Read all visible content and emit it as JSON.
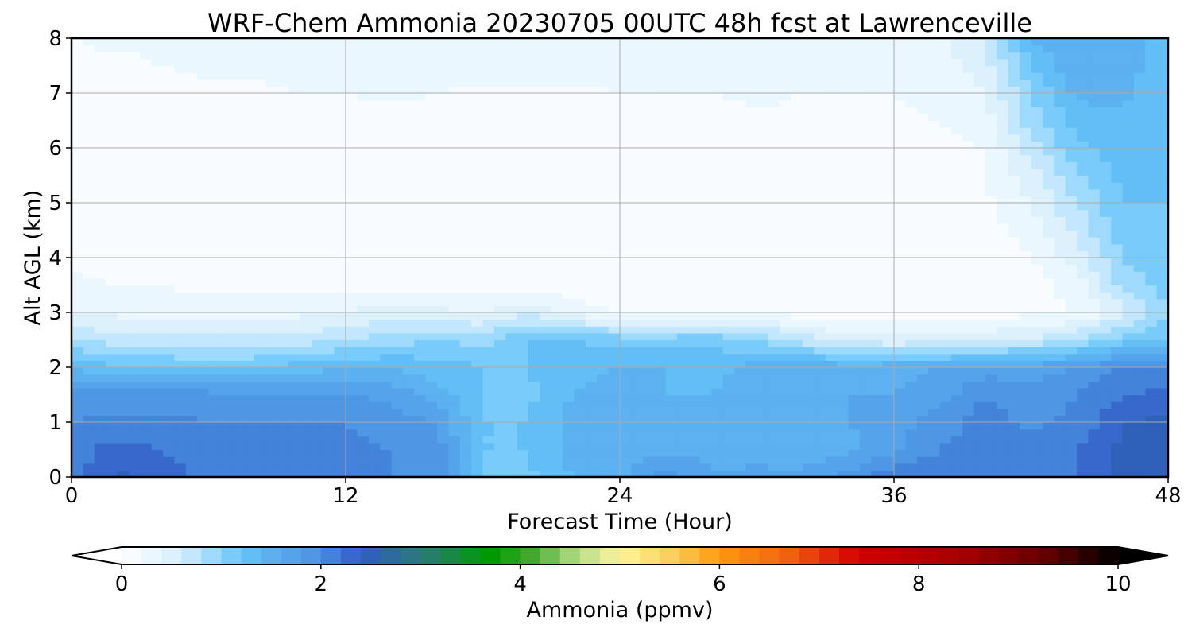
{
  "chart_data": {
    "type": "heatmap",
    "title": "WRF-Chem Ammonia  20230705 00UTC 48h fcst at Lawrenceville",
    "xlabel": "Forecast Time (Hour)",
    "ylabel": "Alt AGL (km)",
    "xlim": [
      0,
      48
    ],
    "ylim": [
      0,
      8
    ],
    "x_ticks": [
      0,
      12,
      24,
      36,
      48
    ],
    "x_tick_labels": [
      "0",
      "12",
      "24",
      "36",
      "48"
    ],
    "y_ticks": [
      0,
      1,
      2,
      3,
      4,
      5,
      6,
      7,
      8
    ],
    "y_tick_labels": [
      "0",
      "1",
      "2",
      "3",
      "4",
      "5",
      "6",
      "7",
      "8"
    ],
    "grid": true,
    "x": [
      0,
      2,
      4,
      6,
      8,
      10,
      12,
      14,
      16,
      18,
      20,
      22,
      24,
      26,
      28,
      30,
      32,
      34,
      36,
      38,
      40,
      42,
      44,
      46,
      48
    ],
    "y": [
      0,
      0.5,
      1,
      1.5,
      2,
      2.5,
      3,
      3.5,
      4,
      4.5,
      5,
      5.5,
      6,
      6.5,
      7,
      7.5,
      8
    ],
    "z": [
      [
        2.1,
        2.45,
        2.3,
        2.15,
        2.1,
        2.1,
        2.1,
        2.0,
        1.9,
        1.2,
        1.15,
        1.4,
        1.55,
        1.9,
        1.6,
        1.7,
        1.7,
        1.9,
        2.15,
        2.2,
        2.2,
        2.2,
        2.2,
        2.45,
        2.5
      ],
      [
        2.1,
        2.3,
        2.2,
        2.1,
        2.15,
        2.1,
        2.05,
        2.0,
        1.9,
        1.2,
        1.2,
        1.5,
        1.55,
        1.55,
        1.55,
        1.45,
        1.4,
        1.55,
        1.75,
        2.0,
        2.1,
        2.1,
        2.2,
        2.45,
        2.6
      ],
      [
        2.0,
        2.05,
        2.05,
        2.0,
        2.0,
        2.0,
        2.0,
        1.9,
        1.8,
        1.2,
        1.2,
        1.5,
        1.6,
        1.5,
        1.4,
        1.5,
        1.5,
        1.6,
        1.7,
        1.9,
        2.1,
        1.95,
        2.05,
        2.4,
        2.45
      ],
      [
        1.9,
        1.9,
        1.9,
        1.9,
        1.85,
        1.85,
        1.8,
        1.75,
        1.5,
        1.2,
        1.15,
        1.4,
        1.5,
        1.4,
        1.4,
        1.55,
        1.6,
        1.6,
        1.6,
        1.7,
        2.0,
        1.9,
        2.0,
        2.2,
        2.25
      ],
      [
        1.4,
        1.2,
        1.2,
        1.1,
        1.2,
        1.3,
        1.4,
        1.4,
        1.3,
        1.2,
        1.2,
        1.35,
        1.4,
        1.4,
        1.3,
        1.5,
        1.6,
        1.5,
        1.55,
        1.6,
        1.7,
        1.7,
        1.8,
        2.0,
        2.0
      ],
      [
        0.8,
        0.7,
        0.7,
        0.65,
        0.65,
        0.7,
        0.8,
        0.9,
        1.0,
        0.9,
        1.2,
        1.2,
        1.1,
        1.1,
        1.15,
        1.0,
        0.7,
        0.5,
        0.45,
        0.5,
        0.55,
        0.6,
        0.8,
        1.1,
        1.2
      ],
      [
        0.4,
        0.35,
        0.3,
        0.3,
        0.3,
        0.35,
        0.4,
        0.5,
        0.45,
        0.4,
        0.55,
        0.3,
        0.2,
        0.2,
        0.2,
        0.15,
        0.1,
        0.1,
        0.1,
        0.1,
        0.1,
        0.15,
        0.2,
        0.5,
        0.95
      ],
      [
        0.25,
        0.2,
        0.2,
        0.15,
        0.15,
        0.15,
        0.15,
        0.15,
        0.15,
        0.1,
        0.1,
        0.1,
        0.05,
        0.05,
        0.05,
        0.05,
        0.05,
        0.05,
        0.05,
        0.05,
        0.05,
        0.1,
        0.3,
        0.9,
        1.1
      ],
      [
        0.15,
        0.1,
        0.1,
        0.1,
        0.05,
        0.05,
        0.05,
        0.05,
        0.05,
        0.05,
        0.05,
        0.05,
        0.05,
        0.05,
        0.05,
        0.05,
        0.05,
        0.05,
        0.05,
        0.05,
        0.05,
        0.2,
        0.5,
        1.0,
        1.1
      ],
      [
        0.1,
        0.05,
        0.05,
        0.05,
        0.05,
        0.05,
        0.05,
        0.05,
        0.05,
        0.05,
        0.05,
        0.05,
        0.05,
        0.05,
        0.05,
        0.05,
        0.05,
        0.05,
        0.05,
        0.05,
        0.1,
        0.3,
        0.65,
        1.1,
        1.15
      ],
      [
        0.05,
        0.05,
        0.05,
        0.05,
        0.05,
        0.05,
        0.05,
        0.05,
        0.05,
        0.05,
        0.05,
        0.05,
        0.05,
        0.05,
        0.05,
        0.05,
        0.05,
        0.05,
        0.05,
        0.1,
        0.15,
        0.4,
        0.8,
        1.2,
        1.2
      ],
      [
        0.05,
        0.05,
        0.05,
        0.05,
        0.05,
        0.05,
        0.05,
        0.05,
        0.05,
        0.05,
        0.05,
        0.05,
        0.05,
        0.05,
        0.05,
        0.05,
        0.05,
        0.1,
        0.15,
        0.1,
        0.2,
        0.5,
        0.95,
        1.25,
        1.2
      ],
      [
        0.05,
        0.05,
        0.05,
        0.05,
        0.05,
        0.05,
        0.05,
        0.05,
        0.05,
        0.05,
        0.05,
        0.05,
        0.05,
        0.05,
        0.1,
        0.1,
        0.1,
        0.15,
        0.2,
        0.15,
        0.2,
        0.7,
        1.15,
        1.3,
        1.2
      ],
      [
        0.1,
        0.05,
        0.05,
        0.05,
        0.05,
        0.05,
        0.05,
        0.1,
        0.1,
        0.05,
        0.05,
        0.05,
        0.05,
        0.1,
        0.1,
        0.15,
        0.15,
        0.15,
        0.15,
        0.2,
        0.3,
        0.9,
        1.3,
        1.35,
        1.2
      ],
      [
        0.1,
        0.1,
        0.1,
        0.15,
        0.15,
        0.2,
        0.2,
        0.25,
        0.2,
        0.15,
        0.15,
        0.15,
        0.2,
        0.2,
        0.2,
        0.25,
        0.2,
        0.2,
        0.2,
        0.25,
        0.4,
        1.0,
        1.45,
        1.45,
        1.2
      ],
      [
        0.15,
        0.15,
        0.2,
        0.25,
        0.25,
        0.3,
        0.3,
        0.3,
        0.3,
        0.3,
        0.3,
        0.3,
        0.3,
        0.3,
        0.3,
        0.35,
        0.35,
        0.35,
        0.3,
        0.3,
        0.5,
        1.2,
        1.55,
        1.5,
        1.3
      ],
      [
        0.2,
        0.25,
        0.25,
        0.3,
        0.3,
        0.3,
        0.35,
        0.35,
        0.35,
        0.35,
        0.35,
        0.35,
        0.35,
        0.35,
        0.35,
        0.35,
        0.35,
        0.35,
        0.35,
        0.35,
        0.6,
        1.4,
        1.6,
        1.5,
        1.3
      ]
    ],
    "colorbar": {
      "label": "Ammonia  (ppmv)",
      "min": 0,
      "max": 10,
      "ticks": [
        0,
        2,
        4,
        6,
        8,
        10
      ],
      "tick_labels": [
        "0",
        "2",
        "4",
        "6",
        "8",
        "10"
      ],
      "extend": "both",
      "levels": 50,
      "color_stops": [
        [
          0.0,
          "#ffffff"
        ],
        [
          0.6,
          "#d6eefc"
        ],
        [
          1.2,
          "#66c5f9"
        ],
        [
          2.0,
          "#4a90e2"
        ],
        [
          2.4,
          "#2f5cc3"
        ],
        [
          3.0,
          "#2a7a7a"
        ],
        [
          3.7,
          "#009a00"
        ],
        [
          4.1,
          "#3faa2a"
        ],
        [
          4.6,
          "#b8de8a"
        ],
        [
          5.0,
          "#fff59a"
        ],
        [
          5.5,
          "#fbd060"
        ],
        [
          6.0,
          "#fb9a10"
        ],
        [
          6.7,
          "#ef6010"
        ],
        [
          7.4,
          "#d20000"
        ],
        [
          8.5,
          "#a00000"
        ],
        [
          9.3,
          "#600000"
        ],
        [
          10.0,
          "#000000"
        ]
      ]
    }
  }
}
